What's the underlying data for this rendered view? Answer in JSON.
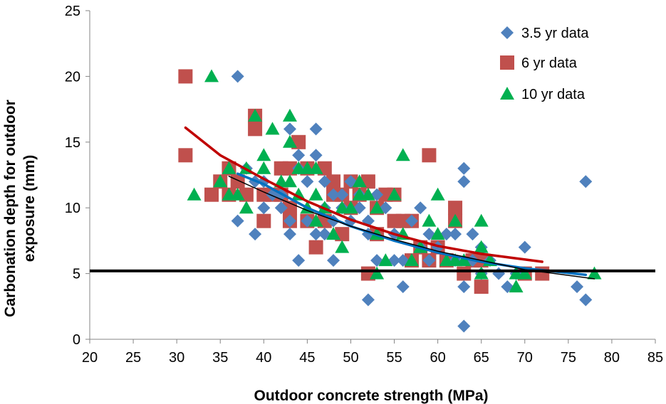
{
  "chart_data": {
    "type": "scatter",
    "title": "",
    "xlabel": "Outdoor concrete strength (MPa)",
    "ylabel_lines": [
      "Carbonation depth  for outdoor",
      "exposure (mm)"
    ],
    "xlim": [
      20,
      85
    ],
    "ylim": [
      0,
      25
    ],
    "xticks": [
      20,
      25,
      30,
      35,
      40,
      45,
      50,
      55,
      60,
      65,
      70,
      75,
      80,
      85
    ],
    "yticks": [
      0,
      5,
      10,
      15,
      20,
      25
    ],
    "grid": false,
    "legend_position": "top-right",
    "series": [
      {
        "name": "3.5 yr data",
        "marker": "diamond",
        "color": "#4F81BD",
        "points": [
          [
            37,
            20
          ],
          [
            37,
            9
          ],
          [
            38,
            13
          ],
          [
            39,
            12
          ],
          [
            39,
            8
          ],
          [
            40,
            10
          ],
          [
            40,
            12
          ],
          [
            41,
            11
          ],
          [
            42,
            11
          ],
          [
            42,
            10
          ],
          [
            43,
            8
          ],
          [
            43,
            9
          ],
          [
            43,
            16
          ],
          [
            44,
            14
          ],
          [
            44,
            6
          ],
          [
            44,
            13
          ],
          [
            45,
            12
          ],
          [
            45,
            9
          ],
          [
            46,
            16
          ],
          [
            46,
            14
          ],
          [
            46,
            8
          ],
          [
            47,
            8
          ],
          [
            47,
            12
          ],
          [
            47,
            10
          ],
          [
            48,
            9
          ],
          [
            48,
            11
          ],
          [
            48,
            6
          ],
          [
            49,
            11
          ],
          [
            49,
            10
          ],
          [
            50,
            12
          ],
          [
            50,
            9
          ],
          [
            51,
            10
          ],
          [
            51,
            11
          ],
          [
            52,
            9
          ],
          [
            52,
            3
          ],
          [
            52,
            8
          ],
          [
            53,
            6
          ],
          [
            53,
            11
          ],
          [
            54,
            10
          ],
          [
            55,
            6
          ],
          [
            55,
            8
          ],
          [
            56,
            4
          ],
          [
            56,
            6
          ],
          [
            57,
            9
          ],
          [
            58,
            7
          ],
          [
            58,
            10
          ],
          [
            59,
            6
          ],
          [
            59,
            8
          ],
          [
            60,
            7
          ],
          [
            61,
            8
          ],
          [
            62,
            6
          ],
          [
            62,
            8
          ],
          [
            63,
            12
          ],
          [
            63,
            13
          ],
          [
            63,
            4
          ],
          [
            63,
            1
          ],
          [
            64,
            8
          ],
          [
            64,
            6
          ],
          [
            65,
            7
          ],
          [
            65,
            5
          ],
          [
            66,
            6
          ],
          [
            67,
            5
          ],
          [
            68,
            4
          ],
          [
            69,
            5
          ],
          [
            70,
            7
          ],
          [
            76,
            4
          ],
          [
            77,
            3
          ],
          [
            77,
            12
          ]
        ]
      },
      {
        "name": "6 yr data",
        "marker": "square",
        "color": "#C0504D",
        "points": [
          [
            31,
            20
          ],
          [
            31,
            14
          ],
          [
            34,
            11
          ],
          [
            35,
            12
          ],
          [
            36,
            13
          ],
          [
            36,
            11
          ],
          [
            37,
            12
          ],
          [
            38,
            11
          ],
          [
            39,
            17
          ],
          [
            39,
            16
          ],
          [
            40,
            11
          ],
          [
            40,
            9
          ],
          [
            41,
            11
          ],
          [
            42,
            13
          ],
          [
            42,
            11
          ],
          [
            43,
            13
          ],
          [
            43,
            9
          ],
          [
            43,
            10
          ],
          [
            44,
            15
          ],
          [
            45,
            9
          ],
          [
            45,
            13
          ],
          [
            46,
            7
          ],
          [
            47,
            13
          ],
          [
            47,
            9
          ],
          [
            48,
            11
          ],
          [
            48,
            12
          ],
          [
            49,
            8
          ],
          [
            49,
            11
          ],
          [
            50,
            12
          ],
          [
            50,
            10
          ],
          [
            51,
            11
          ],
          [
            52,
            12
          ],
          [
            52,
            5
          ],
          [
            53,
            10
          ],
          [
            53,
            8
          ],
          [
            54,
            11
          ],
          [
            55,
            11
          ],
          [
            55,
            9
          ],
          [
            56,
            9
          ],
          [
            57,
            9
          ],
          [
            57,
            6
          ],
          [
            58,
            7
          ],
          [
            59,
            14
          ],
          [
            59,
            6
          ],
          [
            60,
            7
          ],
          [
            61,
            6
          ],
          [
            62,
            10
          ],
          [
            62,
            9
          ],
          [
            63,
            5
          ],
          [
            64,
            6
          ],
          [
            65,
            4
          ],
          [
            65,
            6
          ],
          [
            70,
            5
          ],
          [
            72,
            5
          ]
        ]
      },
      {
        "name": "10 yr data",
        "marker": "triangle",
        "color": "#00B050",
        "points": [
          [
            32,
            11
          ],
          [
            34,
            20
          ],
          [
            35,
            12
          ],
          [
            36,
            11
          ],
          [
            36,
            13
          ],
          [
            37,
            11
          ],
          [
            38,
            13
          ],
          [
            38,
            10
          ],
          [
            39,
            17
          ],
          [
            40,
            14
          ],
          [
            40,
            13
          ],
          [
            41,
            16
          ],
          [
            42,
            12
          ],
          [
            43,
            15
          ],
          [
            43,
            17
          ],
          [
            43,
            12
          ],
          [
            44,
            11
          ],
          [
            44,
            13
          ],
          [
            45,
            10
          ],
          [
            45,
            13
          ],
          [
            46,
            11
          ],
          [
            46,
            9
          ],
          [
            46,
            13
          ],
          [
            47,
            10
          ],
          [
            48,
            8
          ],
          [
            49,
            7
          ],
          [
            49,
            10
          ],
          [
            50,
            10
          ],
          [
            51,
            12
          ],
          [
            51,
            11
          ],
          [
            52,
            11
          ],
          [
            53,
            8
          ],
          [
            53,
            10
          ],
          [
            53,
            5
          ],
          [
            54,
            6
          ],
          [
            55,
            11
          ],
          [
            56,
            14
          ],
          [
            56,
            8
          ],
          [
            57,
            6
          ],
          [
            58,
            7
          ],
          [
            59,
            9
          ],
          [
            60,
            11
          ],
          [
            60,
            8
          ],
          [
            61,
            6
          ],
          [
            62,
            9
          ],
          [
            62,
            6
          ],
          [
            63,
            6
          ],
          [
            65,
            9
          ],
          [
            65,
            7
          ],
          [
            65,
            5
          ],
          [
            66,
            6
          ],
          [
            69,
            4
          ],
          [
            69,
            5
          ],
          [
            70,
            5
          ],
          [
            78,
            5
          ]
        ]
      }
    ],
    "trendlines": [
      {
        "color": "#C00000",
        "x_range": [
          31,
          72
        ],
        "points": [
          [
            31,
            16.1
          ],
          [
            35,
            14.0
          ],
          [
            40,
            12.2
          ],
          [
            45,
            10.5
          ],
          [
            50,
            9.1
          ],
          [
            55,
            8.0
          ],
          [
            60,
            7.1
          ],
          [
            65,
            6.5
          ],
          [
            72,
            5.9
          ]
        ]
      },
      {
        "color": "#0070C0",
        "x_range": [
          37,
          77
        ],
        "points": [
          [
            37,
            12.6
          ],
          [
            40,
            11.8
          ],
          [
            45,
            10.0
          ],
          [
            50,
            8.6
          ],
          [
            55,
            7.5
          ],
          [
            60,
            6.6
          ],
          [
            65,
            5.9
          ],
          [
            70,
            5.4
          ],
          [
            77,
            4.9
          ]
        ]
      },
      {
        "color": "#000000",
        "x_range": [
          36,
          78
        ],
        "points": [
          [
            36,
            12.4
          ],
          [
            40,
            11.2
          ],
          [
            45,
            9.8
          ],
          [
            50,
            8.6
          ],
          [
            55,
            7.6
          ],
          [
            60,
            6.7
          ],
          [
            65,
            6.0
          ],
          [
            70,
            5.3
          ],
          [
            78,
            4.6
          ]
        ]
      }
    ],
    "reference_line": {
      "y": 5.2,
      "color": "#000000"
    }
  }
}
